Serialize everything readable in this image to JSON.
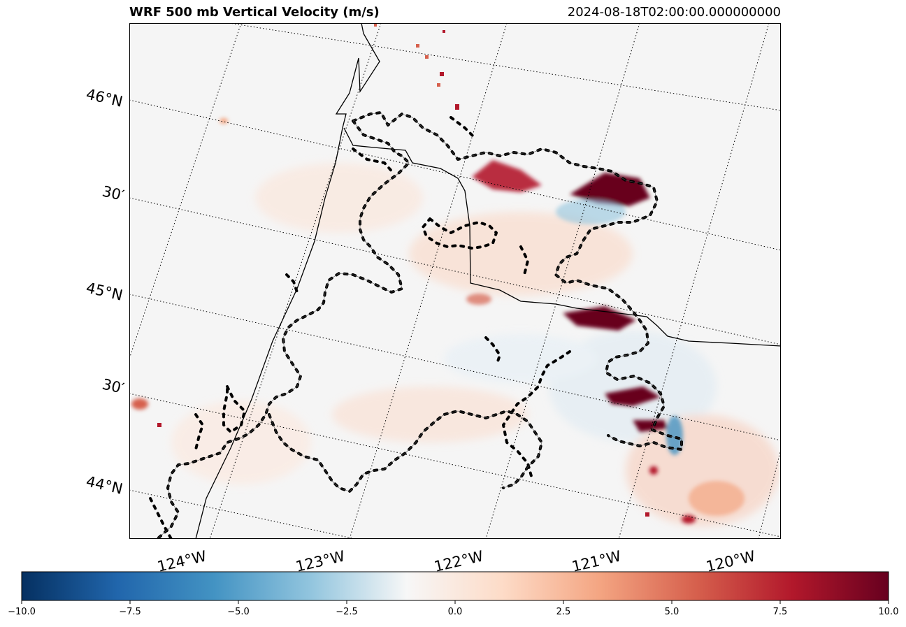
{
  "title": "WRF 500 mb Vertical Velocity (m/s)",
  "timestamp": "2024-08-18T02:00:00.000000000",
  "map": {
    "lat_labels": [
      "46°N",
      "30′",
      "45°N",
      "30′",
      "44°N"
    ],
    "lon_labels": [
      "124°W",
      "123°W",
      "122°W",
      "121°W",
      "120°W"
    ],
    "features": [
      "coastline",
      "state-border",
      "county-style-dashed-contours",
      "graticule-dotted"
    ],
    "colormap": "RdBu_r"
  },
  "colorbar": {
    "min": -10.0,
    "max": 10.0,
    "ticks": [
      "−10.0",
      "−7.5",
      "−5.0",
      "−2.5",
      "0.0",
      "2.5",
      "5.0",
      "7.5",
      "10.0"
    ],
    "colors": [
      "#053061",
      "#2166ac",
      "#4393c3",
      "#92c5de",
      "#f7f7f7",
      "#fddbc7",
      "#f4a582",
      "#d6604d",
      "#b2182b",
      "#67001f"
    ]
  }
}
